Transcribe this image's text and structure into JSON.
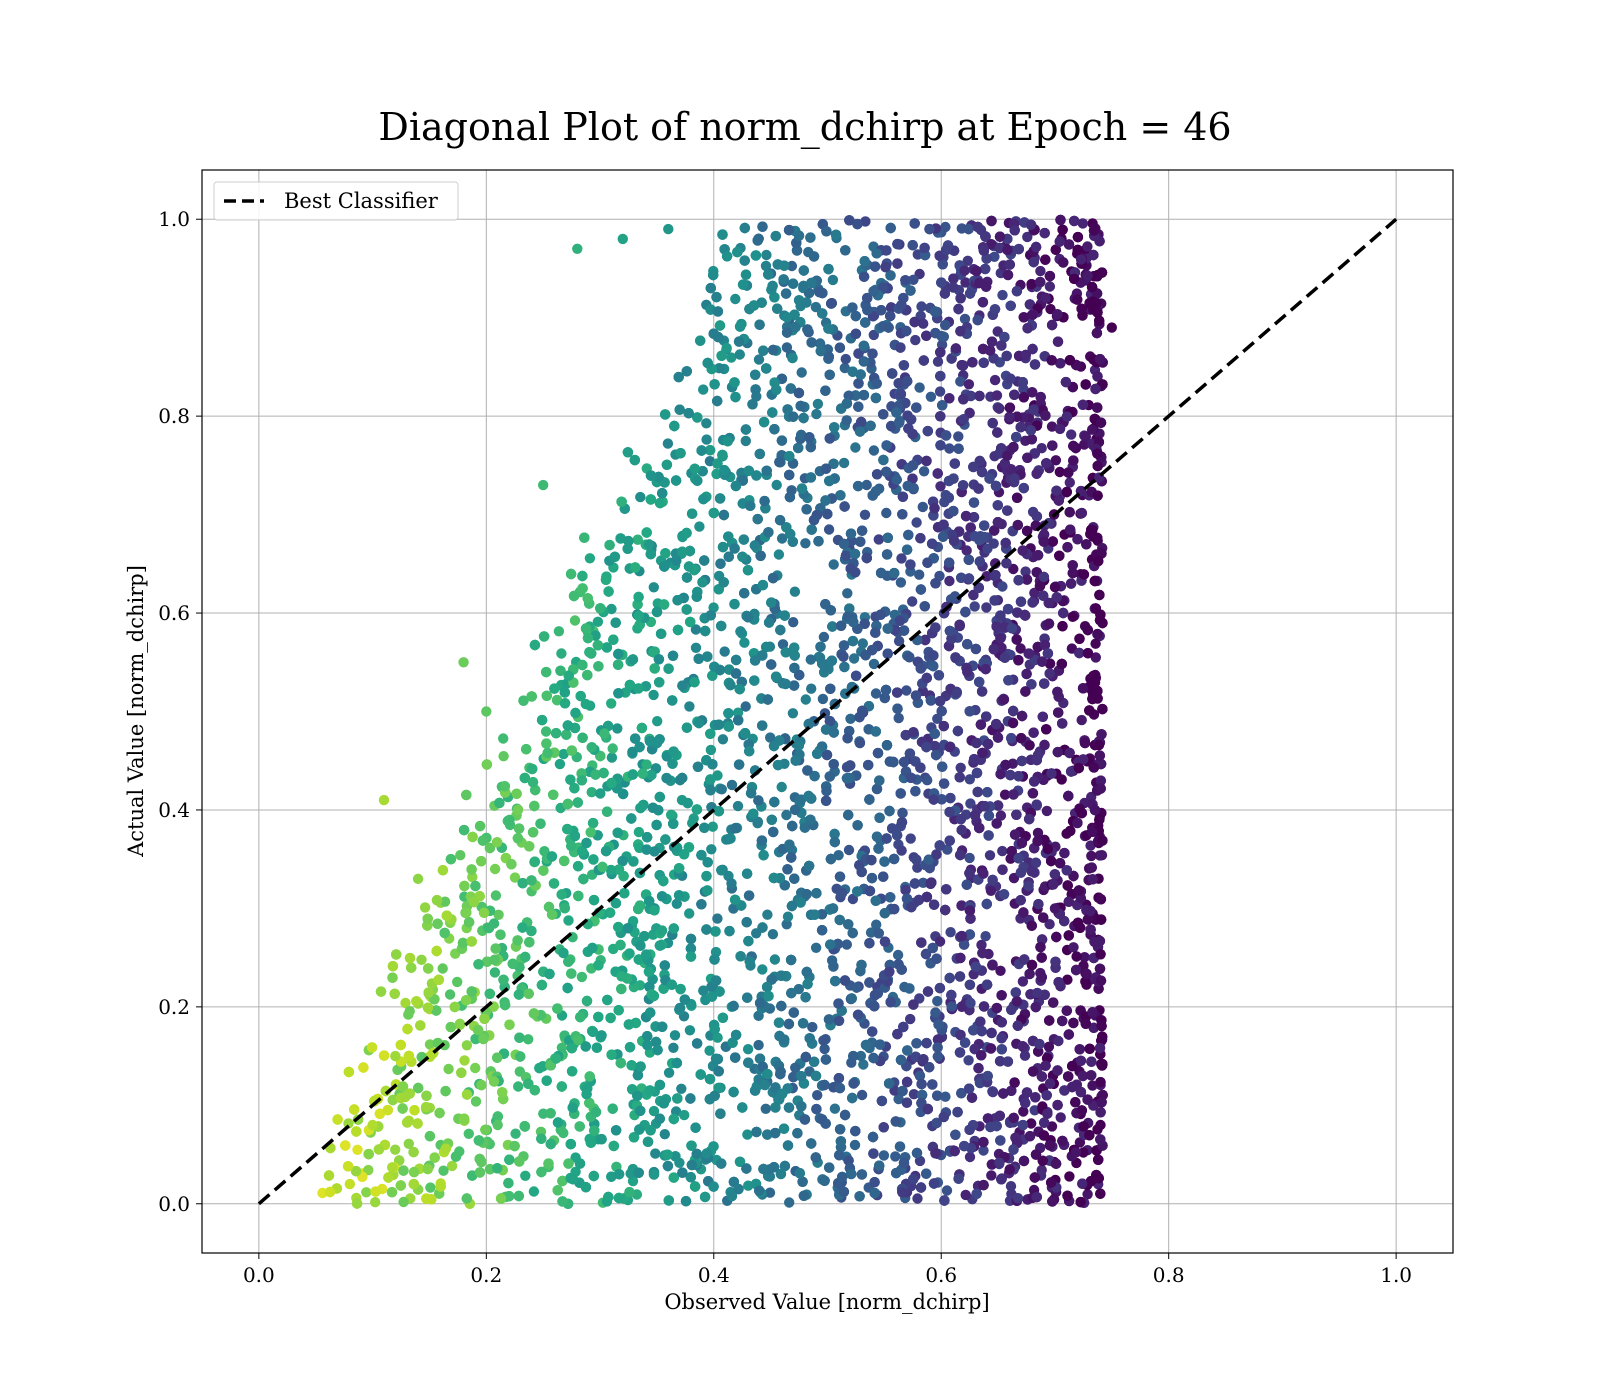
{
  "chart_data": {
    "type": "scatter",
    "title": "Diagonal Plot of norm_dchirp at Epoch = 46",
    "xlabel": "Observed Value [norm_dchirp]",
    "ylabel": "Actual Value [norm_dchirp]",
    "xlim": [
      -0.05,
      1.05
    ],
    "ylim": [
      -0.05,
      1.05
    ],
    "xticks": [
      "0.0",
      "0.2",
      "0.4",
      "0.6",
      "0.8",
      "1.0"
    ],
    "yticks": [
      "0.0",
      "0.2",
      "0.4",
      "0.6",
      "0.8",
      "1.0"
    ],
    "grid": true,
    "legend": {
      "placement": "top-left",
      "entries": [
        "Best Classifier"
      ]
    },
    "reference_line": {
      "name": "Best Classifier",
      "style": "dashed",
      "color": "#000000",
      "x": [
        0.0,
        1.0
      ],
      "y": [
        0.0,
        1.0
      ]
    },
    "colormap": "viridis",
    "point_color": "Color encodes distance from the diagonal: yellow-green near the low-left corner, purple at high observed values",
    "scatter_region": {
      "observed_range": [
        0.05,
        0.75
      ],
      "actual_range": [
        0.0,
        1.0
      ],
      "lower_bound_of_points_description": "points lie roughly above the line y = 1.0*x - 0.05 up to y = 1.0 for x > 0.45; sparse triangle-shaped spread for x < 0.45 with upper edge approximately y = 2.6*x - 0.1"
    },
    "sample_points": [
      {
        "x": 0.08,
        "y": 0.02
      },
      {
        "x": 0.1,
        "y": 0.08
      },
      {
        "x": 0.12,
        "y": 0.15
      },
      {
        "x": 0.11,
        "y": 0.41
      },
      {
        "x": 0.14,
        "y": 0.33
      },
      {
        "x": 0.18,
        "y": 0.55
      },
      {
        "x": 0.2,
        "y": 0.5
      },
      {
        "x": 0.25,
        "y": 0.73
      },
      {
        "x": 0.28,
        "y": 0.97
      },
      {
        "x": 0.32,
        "y": 0.98
      },
      {
        "x": 0.36,
        "y": 0.99
      },
      {
        "x": 0.75,
        "y": 0.89
      },
      {
        "x": 0.7,
        "y": 0.3
      },
      {
        "x": 0.49,
        "y": 0.26
      },
      {
        "x": 0.21,
        "y": 0.08
      }
    ]
  }
}
